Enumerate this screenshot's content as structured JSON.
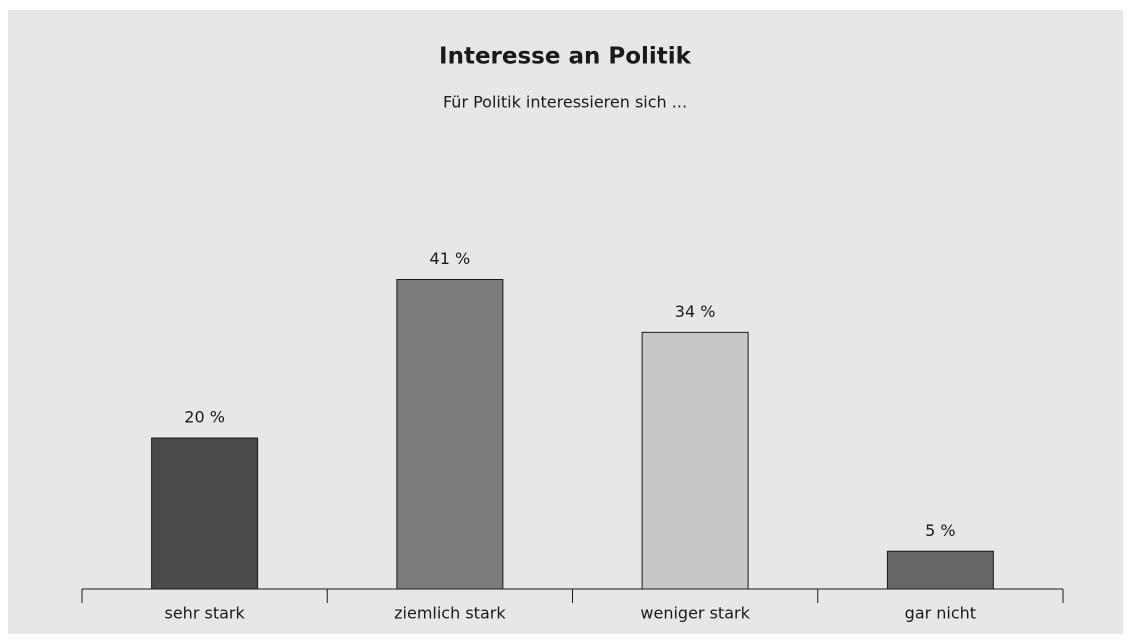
{
  "chart_data": {
    "type": "bar",
    "title": "Interesse an Politik",
    "subtitle": "Für Politik interessieren sich ...",
    "categories": [
      "sehr stark",
      "ziemlich stark",
      "weniger stark",
      "gar nicht"
    ],
    "values": [
      20,
      41,
      34,
      5
    ],
    "value_labels": [
      "20 %",
      "41 %",
      "34 %",
      "5 %"
    ],
    "colors": [
      "#4a4a4b",
      "#7b7c7d",
      "#c6c7c8",
      "#656667"
    ]
  }
}
